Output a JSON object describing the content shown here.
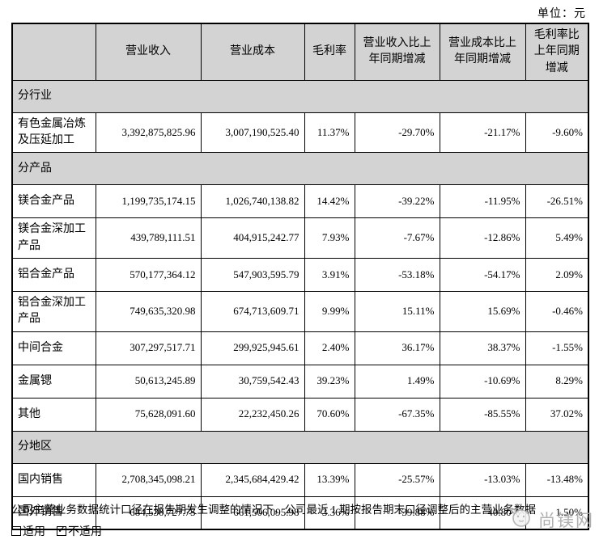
{
  "unit_label": "单位：元",
  "table": {
    "columns": [
      "",
      "营业收入",
      "营业成本",
      "毛利率",
      "营业收入比上年同期增减",
      "营业成本比上年同期增减",
      "毛利率比上年同期增减"
    ],
    "rows": [
      {
        "type": "section",
        "label": "分行业"
      },
      {
        "type": "data",
        "label": "有色金属冶炼及压延加工",
        "values": [
          "3,392,875,825.96",
          "3,007,190,525.40",
          "11.37%",
          "-29.70%",
          "-21.17%",
          "-9.60%"
        ]
      },
      {
        "type": "section",
        "label": "分产品"
      },
      {
        "type": "data",
        "label": "镁合金产品",
        "values": [
          "1,199,735,174.15",
          "1,026,740,138.82",
          "14.42%",
          "-39.22%",
          "-11.95%",
          "-26.51%"
        ]
      },
      {
        "type": "data",
        "label": "镁合金深加工产品",
        "values": [
          "439,789,111.51",
          "404,915,242.77",
          "7.93%",
          "-7.67%",
          "-12.86%",
          "5.49%"
        ]
      },
      {
        "type": "data",
        "label": "铝合金产品",
        "values": [
          "570,177,364.12",
          "547,903,595.79",
          "3.91%",
          "-53.18%",
          "-54.17%",
          "2.09%"
        ]
      },
      {
        "type": "data",
        "label": "铝合金深加工产品",
        "values": [
          "749,635,320.98",
          "674,713,609.71",
          "9.99%",
          "15.11%",
          "15.69%",
          "-0.46%"
        ]
      },
      {
        "type": "data",
        "label": "中间合金",
        "values": [
          "307,297,517.71",
          "299,925,945.61",
          "2.40%",
          "36.17%",
          "38.37%",
          "-1.55%"
        ]
      },
      {
        "type": "data",
        "label": "金属锶",
        "values": [
          "50,613,245.89",
          "30,759,542.43",
          "39.23%",
          "1.49%",
          "-10.69%",
          "8.29%"
        ]
      },
      {
        "type": "data",
        "label": "其他",
        "values": [
          "75,628,091.60",
          "22,232,450.26",
          "70.60%",
          "-67.35%",
          "-85.55%",
          "37.02%"
        ]
      },
      {
        "type": "section",
        "label": "分地区"
      },
      {
        "type": "data",
        "label": "国内销售",
        "values": [
          "2,708,345,098.21",
          "2,345,684,429.42",
          "13.39%",
          "-25.57%",
          "-13.03%",
          "-13.48%"
        ]
      },
      {
        "type": "data",
        "label": "国外销售",
        "values": [
          "684,530,727.75",
          "661,506,095.98",
          "3.36%",
          "-39.88%",
          "-40.80%",
          "1.50%"
        ]
      }
    ]
  },
  "footnote": "公司主营业务数据统计口径在报告期发生调整的情况下，公司最近 1 期按报告期末口径调整后的主营业务数据",
  "applicability": {
    "applicable_label": "适用",
    "not_applicable_label": "不适用"
  },
  "watermark": {
    "text": "尚镁网"
  },
  "colors": {
    "header_fill": "#d3d3d3",
    "border": "#000000",
    "watermark_gray": "#a8a8a8"
  }
}
